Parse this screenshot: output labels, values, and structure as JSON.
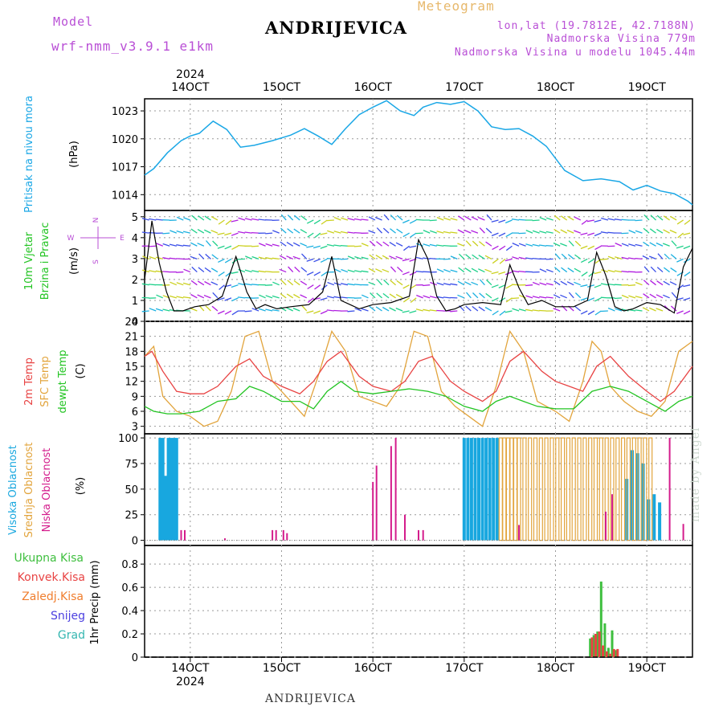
{
  "header": {
    "model_label": "Model",
    "model_name": "wrf-nmm_v3.9.1 e1km",
    "meteogram_title": "Meteogram",
    "station": "ANDRIJEVICA",
    "lonlat": "lon,lat (19.7812E, 42.7188N)",
    "altitude": "Nadmorska Visina 779m",
    "model_altitude": "Nadmorska Visina u modelu 1045.44m"
  },
  "footer": {
    "station": "ANDRIJEVICA",
    "credit": "made by Angel"
  },
  "colors": {
    "pressure": "#1aa7e6",
    "temp2m": "#e84343",
    "sfc_temp": "#e2a43c",
    "dewpt": "#22c422",
    "high_cloud": "#18a7df",
    "mid_cloud": "#e2a43c",
    "low_cloud": "#d41c8c",
    "precip_total": "#3fbf3f",
    "precip_conv": "#e84343",
    "precip_strat": "#f07e2e",
    "precip_snow": "#4b3fe0",
    "precip_graupel": "#34b6b0",
    "wind_speed": "#000000",
    "gust_marker": "#e84343"
  },
  "time_axis": {
    "top_year": "2024",
    "bottom_year": "2024",
    "day_labels": [
      "14OCT",
      "15OCT",
      "16OCT",
      "17OCT",
      "18OCT",
      "19OCT"
    ],
    "day_positions": [
      1,
      2,
      3,
      4,
      5,
      6
    ],
    "range_days": [
      0.5,
      6.5
    ]
  },
  "chart_data": [
    {
      "type": "line",
      "ylabel": "Pritisak na nivou mora",
      "unit": "(hPa)",
      "ylim": [
        1012.3,
        1024.3
      ],
      "yticks": [
        1014,
        1017,
        1020,
        1023
      ],
      "grid": true,
      "series": [
        {
          "name": "pressure",
          "x": [
            0.5,
            0.6,
            0.75,
            0.9,
            1.0,
            1.1,
            1.25,
            1.4,
            1.55,
            1.7,
            1.9,
            2.1,
            2.25,
            2.4,
            2.55,
            2.7,
            2.85,
            3.0,
            3.15,
            3.3,
            3.45,
            3.55,
            3.7,
            3.85,
            4.0,
            4.15,
            4.3,
            4.45,
            4.6,
            4.75,
            4.9,
            5.1,
            5.3,
            5.5,
            5.7,
            5.85,
            6.0,
            6.15,
            6.3,
            6.45,
            6.5
          ],
          "y": [
            1016.1,
            1016.8,
            1018.5,
            1019.8,
            1020.3,
            1020.6,
            1021.9,
            1021.0,
            1019.1,
            1019.3,
            1019.8,
            1020.4,
            1021.1,
            1020.3,
            1019.4,
            1021.1,
            1022.6,
            1023.4,
            1024.1,
            1023.0,
            1022.5,
            1023.4,
            1023.9,
            1023.7,
            1024.0,
            1023.0,
            1021.3,
            1021.0,
            1021.1,
            1020.3,
            1019.2,
            1016.6,
            1015.5,
            1015.7,
            1015.4,
            1014.5,
            1015.0,
            1014.4,
            1014.1,
            1013.3,
            1012.9
          ]
        }
      ]
    },
    {
      "type": "line",
      "ylabel": "10m Vjetar Brzina i Pravac",
      "unit": "(m/s)",
      "ylim": [
        0,
        5.3
      ],
      "yticks": [
        0,
        1,
        2,
        3,
        4,
        5
      ],
      "grid": true,
      "legend_compass": [
        "N",
        "E",
        "S",
        "W"
      ],
      "series": [
        {
          "name": "wind speed",
          "x": [
            0.5,
            0.58,
            0.66,
            0.74,
            0.82,
            0.92,
            1.05,
            1.2,
            1.35,
            1.5,
            1.62,
            1.72,
            1.82,
            1.95,
            2.1,
            2.3,
            2.45,
            2.55,
            2.65,
            2.75,
            2.85,
            3.0,
            3.2,
            3.4,
            3.5,
            3.6,
            3.7,
            3.8,
            3.9,
            4.0,
            4.2,
            4.4,
            4.5,
            4.6,
            4.7,
            4.85,
            5.0,
            5.2,
            5.35,
            5.45,
            5.55,
            5.65,
            5.75,
            5.85,
            6.0,
            6.15,
            6.3,
            6.4,
            6.5
          ],
          "y": [
            2.0,
            4.8,
            2.8,
            1.4,
            0.5,
            0.5,
            0.7,
            0.8,
            1.2,
            3.1,
            1.4,
            0.6,
            0.8,
            0.6,
            0.7,
            0.8,
            1.4,
            3.1,
            1.0,
            0.8,
            0.6,
            0.8,
            0.9,
            1.2,
            3.9,
            3.0,
            1.2,
            0.5,
            0.6,
            0.8,
            0.9,
            0.8,
            2.7,
            1.6,
            0.8,
            1.0,
            0.7,
            0.7,
            1.0,
            3.3,
            2.2,
            0.7,
            0.5,
            0.6,
            0.9,
            0.8,
            0.4,
            2.6,
            3.5
          ]
        }
      ]
    },
    {
      "type": "line",
      "ylabel": "2m Temp / SFC Temp / dewpt Temp",
      "unit": "(C)",
      "ylim": [
        1.5,
        24
      ],
      "yticks": [
        3,
        6,
        9,
        12,
        15,
        18,
        21,
        24
      ],
      "grid": true,
      "series": [
        {
          "name": "2m Temp",
          "x": [
            0.5,
            0.58,
            0.7,
            0.85,
            1.0,
            1.15,
            1.3,
            1.5,
            1.65,
            1.8,
            2.0,
            2.2,
            2.35,
            2.5,
            2.65,
            2.85,
            3.0,
            3.2,
            3.35,
            3.5,
            3.65,
            3.85,
            4.0,
            4.2,
            4.35,
            4.5,
            4.65,
            4.85,
            5.0,
            5.15,
            5.3,
            5.45,
            5.6,
            5.8,
            6.0,
            6.15,
            6.3,
            6.5
          ],
          "y": [
            17,
            18,
            14,
            10,
            9.5,
            9.5,
            11,
            15,
            16.5,
            13,
            11,
            9.5,
            12,
            16,
            18,
            13,
            11,
            10,
            12,
            16,
            17,
            12,
            10,
            8,
            10,
            16,
            18,
            14,
            12,
            11,
            10,
            15,
            17,
            13,
            10,
            8,
            10,
            15
          ]
        },
        {
          "name": "SFC Temp",
          "x": [
            0.5,
            0.6,
            0.7,
            0.85,
            1.0,
            1.15,
            1.3,
            1.45,
            1.6,
            1.75,
            1.9,
            2.1,
            2.25,
            2.4,
            2.55,
            2.7,
            2.85,
            3.0,
            3.15,
            3.3,
            3.45,
            3.6,
            3.75,
            3.9,
            4.05,
            4.2,
            4.35,
            4.5,
            4.65,
            4.8,
            5.0,
            5.15,
            5.3,
            5.4,
            5.5,
            5.6,
            5.75,
            5.9,
            6.05,
            6.2,
            6.35,
            6.5
          ],
          "y": [
            17,
            19,
            9,
            6,
            5,
            3,
            4,
            10,
            21,
            22,
            12,
            8,
            5,
            13,
            22,
            18,
            9,
            8,
            7,
            11,
            22,
            21,
            10,
            7,
            5,
            3,
            11,
            22,
            18,
            8,
            6,
            4,
            12,
            20,
            18,
            11,
            8,
            6,
            5,
            8,
            18,
            20
          ]
        },
        {
          "name": "dewpt Temp",
          "x": [
            0.5,
            0.6,
            0.75,
            0.9,
            1.1,
            1.3,
            1.5,
            1.65,
            1.8,
            2.0,
            2.2,
            2.35,
            2.5,
            2.65,
            2.8,
            3.0,
            3.2,
            3.4,
            3.6,
            3.8,
            4.0,
            4.2,
            4.35,
            4.5,
            4.65,
            4.8,
            5.0,
            5.2,
            5.4,
            5.6,
            5.8,
            6.0,
            6.2,
            6.35,
            6.5
          ],
          "y": [
            7,
            6,
            5.5,
            5.5,
            6,
            8,
            8.5,
            11,
            10,
            8,
            8,
            6.5,
            10,
            12,
            10,
            9.5,
            10,
            10.5,
            10,
            9,
            7,
            6,
            8,
            9,
            8,
            7,
            6.5,
            6.5,
            10,
            11,
            10,
            8,
            6,
            8,
            9
          ]
        }
      ]
    },
    {
      "type": "bar",
      "ylabel": "Visoka Oblacnost / Srednja Oblacnost / Niska Oblacnost",
      "unit": "(%)",
      "ylim": [
        -5,
        104
      ],
      "yticks": [
        0,
        25,
        50,
        75,
        100
      ],
      "grid": true,
      "series": [
        {
          "name": "Visoka Oblacnost",
          "x": [
            0.67,
            0.7,
            0.73,
            0.76,
            0.79,
            0.82,
            0.85,
            4.0,
            4.04,
            4.08,
            4.12,
            4.16,
            4.2,
            4.24,
            4.28,
            4.32,
            4.36,
            5.78,
            5.84,
            5.9,
            5.96,
            6.02,
            6.08,
            6.14
          ],
          "y": [
            100,
            100,
            63,
            100,
            100,
            100,
            100,
            100,
            100,
            100,
            100,
            100,
            100,
            100,
            100,
            100,
            100,
            60,
            88,
            85,
            75,
            40,
            45,
            37
          ]
        },
        {
          "name": "Srednja Oblacnost",
          "x": [
            4.4,
            4.44,
            4.48,
            4.52,
            4.56,
            4.6,
            4.66,
            4.72,
            4.78,
            4.84,
            4.9,
            4.96,
            5.02,
            5.08,
            5.14,
            5.2,
            5.26,
            5.32,
            5.38,
            5.44,
            5.5,
            5.56,
            5.62,
            5.68,
            5.74,
            5.8,
            5.86,
            5.92,
            5.98,
            6.04
          ],
          "y": [
            100,
            100,
            100,
            100,
            100,
            100,
            100,
            100,
            100,
            100,
            100,
            100,
            100,
            100,
            100,
            100,
            100,
            100,
            100,
            100,
            100,
            100,
            100,
            100,
            100,
            100,
            100,
            100,
            100,
            100
          ]
        },
        {
          "name": "Niska Oblacnost",
          "x": [
            0.9,
            0.94,
            1.38,
            1.9,
            1.94,
            2.02,
            2.06,
            3.0,
            3.04,
            3.2,
            3.25,
            3.35,
            3.5,
            3.55,
            4.6,
            5.55,
            5.62,
            6.25,
            6.4
          ],
          "y": [
            10,
            10,
            2,
            10,
            10,
            10,
            7,
            57,
            73,
            92,
            100,
            25,
            10,
            10,
            15,
            28,
            45,
            100,
            16
          ]
        }
      ]
    },
    {
      "type": "bar",
      "ylabel": "1hr Precip",
      "unit": "(mm)",
      "ylim": [
        0,
        0.96
      ],
      "yticks": [
        0,
        0.2,
        0.4,
        0.6,
        0.8
      ],
      "grid": true,
      "legend": [
        "Ukupna Kisa",
        "Konvek.Kisa",
        "Zaledj.Kisa",
        "Snijeg",
        "Grad"
      ],
      "series": [
        {
          "name": "Ukupna Kisa",
          "x": [
            5.38,
            5.42,
            5.46,
            5.5,
            5.54,
            5.58,
            5.62,
            5.66
          ],
          "y": [
            0.16,
            0.19,
            0.22,
            0.65,
            0.29,
            0.08,
            0.23,
            0.06
          ]
        },
        {
          "name": "Konvek.Kisa",
          "x": [
            5.4,
            5.44,
            5.48,
            5.52,
            5.56,
            5.6,
            5.64,
            5.68
          ],
          "y": [
            0.17,
            0.2,
            0.22,
            0.1,
            0.05,
            0.03,
            0.07,
            0.07
          ]
        }
      ]
    }
  ]
}
